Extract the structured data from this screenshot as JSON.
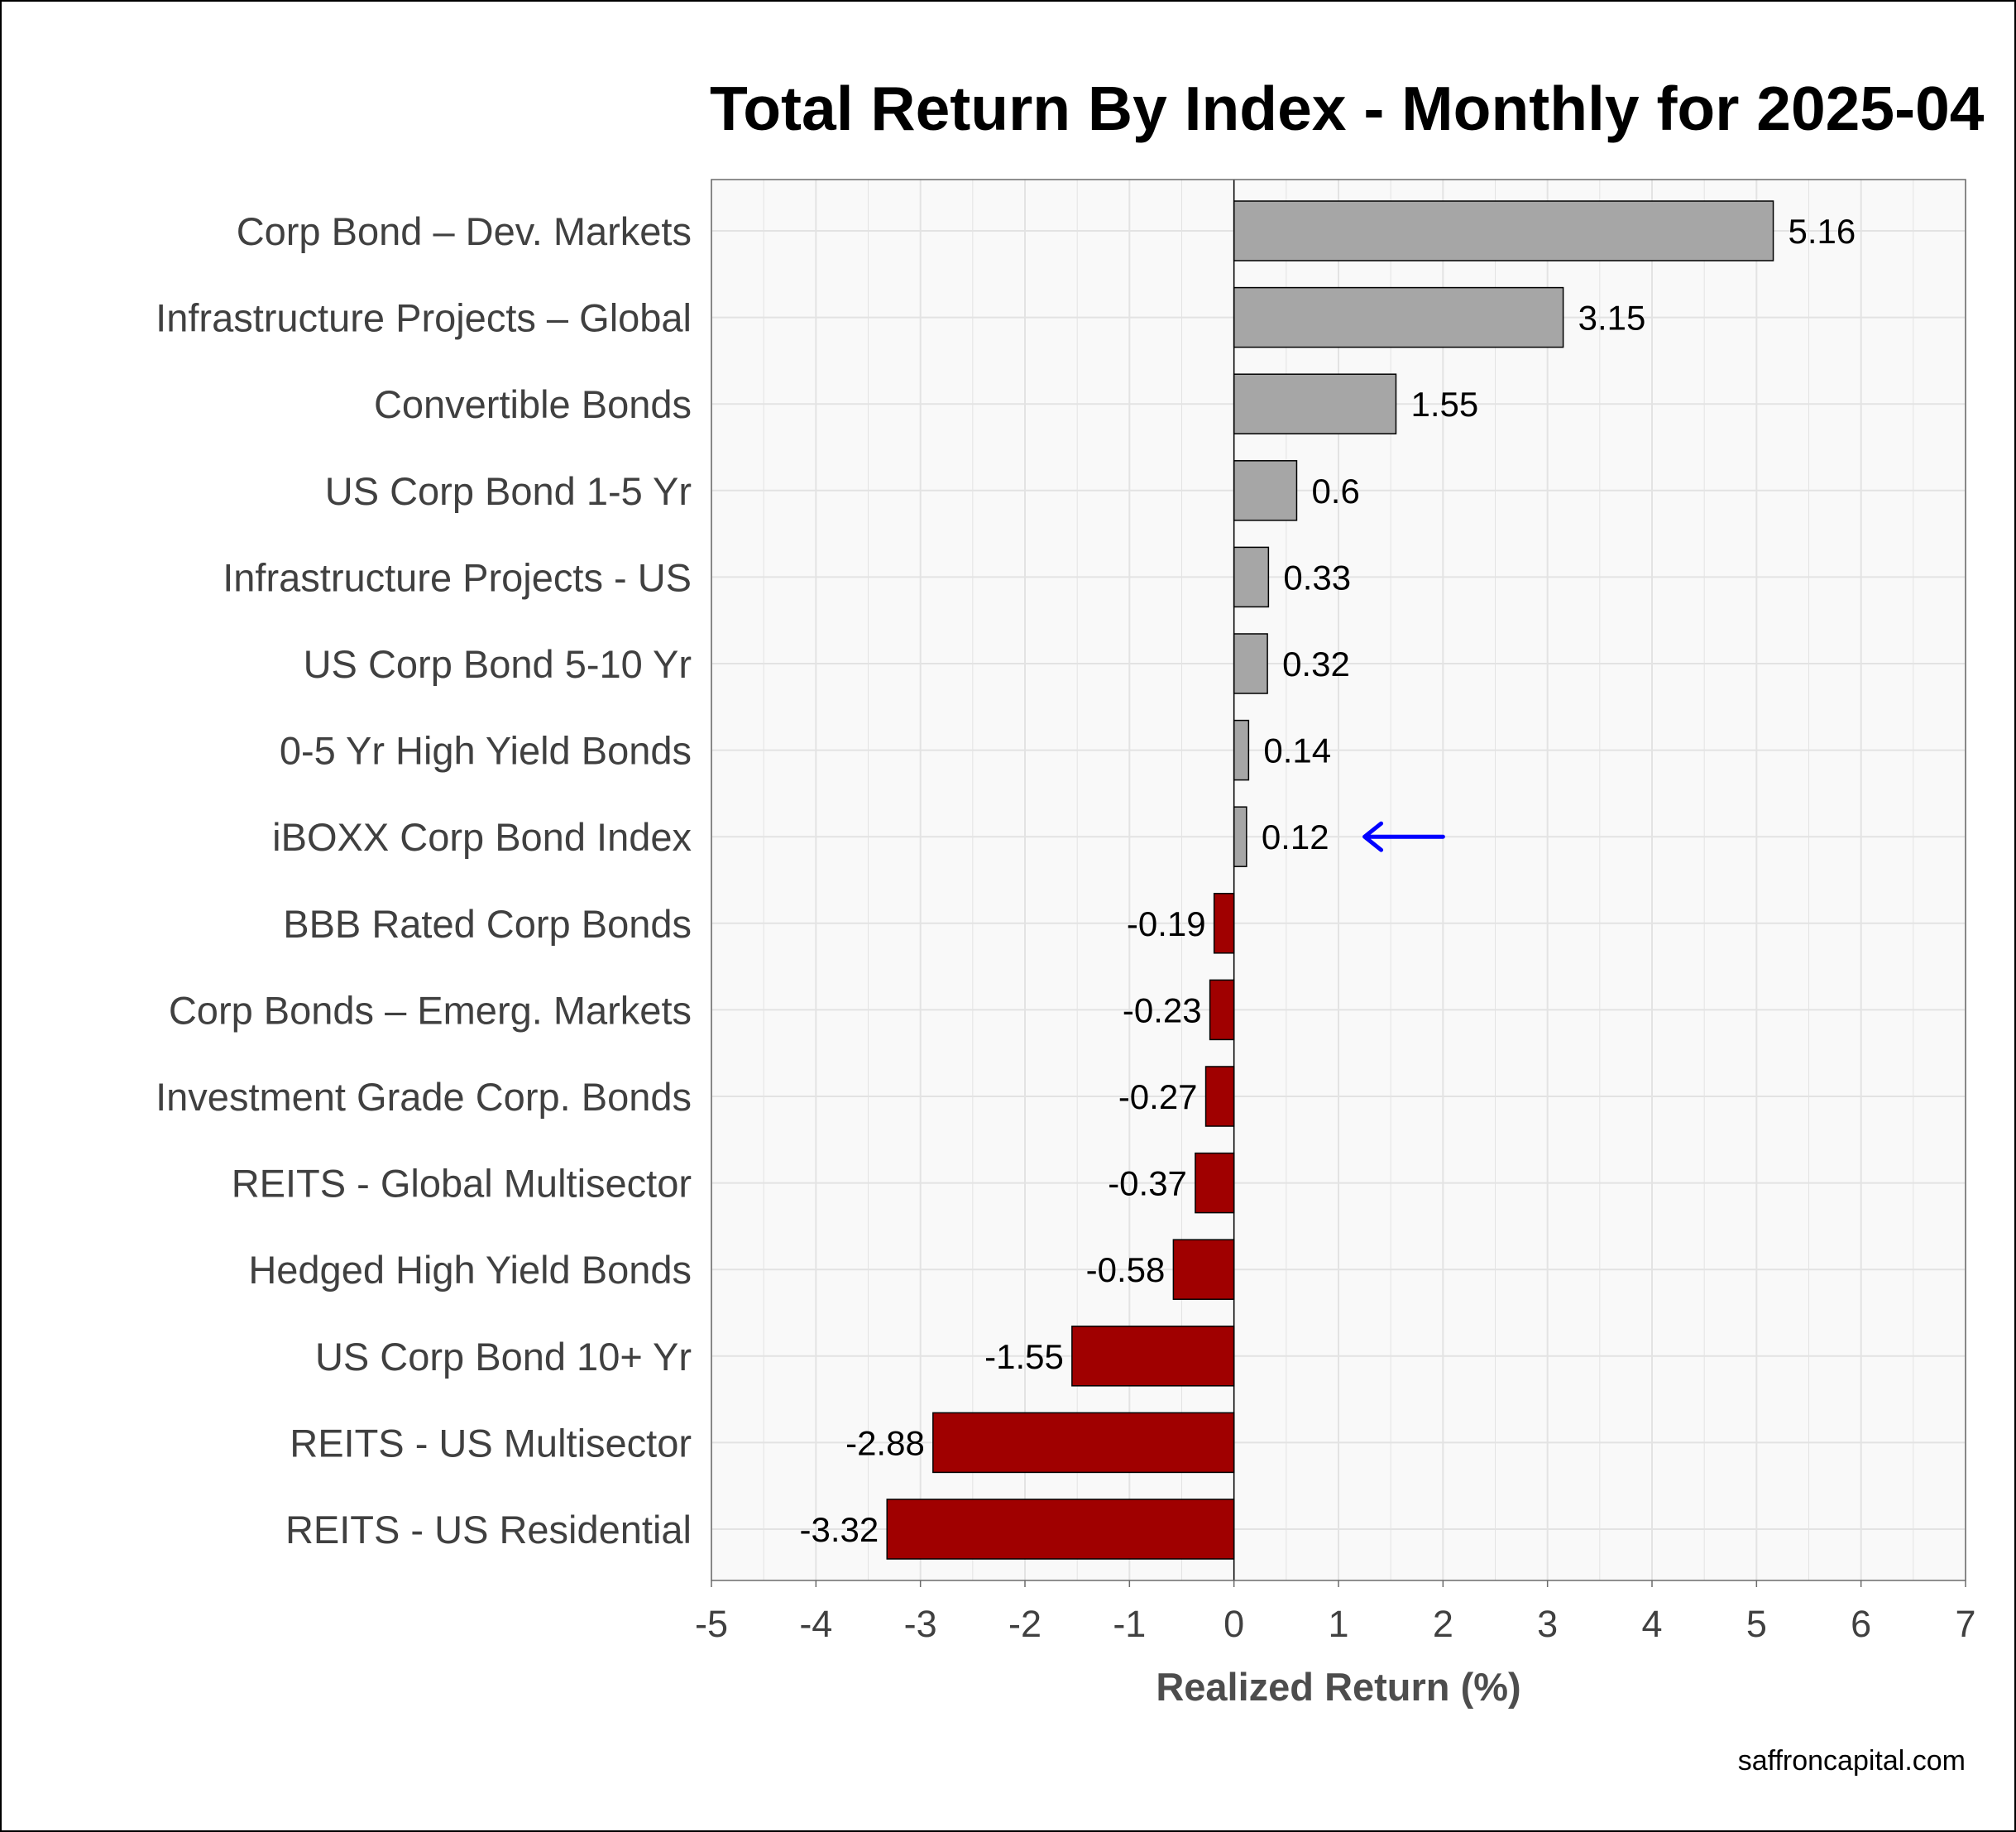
{
  "credit": "saffroncapital.com",
  "colors": {
    "positive_bar": "#a6a6a6",
    "negative_bar": "#a00000",
    "highlight_label": "#0000ff",
    "panel_background": "#f9f9f9",
    "grid": "#e3e3e3"
  },
  "chart_data": {
    "type": "bar",
    "orientation": "horizontal",
    "title": "Total Return By Index - Monthly for 2025-04",
    "xlabel": "Realized Return (%)",
    "ylabel": "",
    "xlim": [
      -5,
      7
    ],
    "xticks": [
      "-5",
      "-4",
      "-3",
      "-2",
      "-1",
      "0",
      "1",
      "2",
      "3",
      "4",
      "5",
      "6",
      "7"
    ],
    "grid": true,
    "highlight": {
      "category": "iBOXX Corp Bond Index",
      "marker": "left-arrow"
    },
    "categories": [
      "Corp Bond – Dev. Markets",
      "Infrastructure Projects – Global",
      "Convertible Bonds",
      "US Corp Bond 1-5 Yr",
      "Infrastructure Projects - US",
      "US Corp Bond 5-10 Yr",
      "0-5 Yr High Yield Bonds",
      "iBOXX Corp Bond Index",
      "BBB Rated Corp Bonds",
      "Corp Bonds – Emerg. Markets",
      "Investment Grade Corp. Bonds",
      "REITS - Global Multisector",
      "Hedged High Yield Bonds",
      "US Corp Bond 10+ Yr",
      "REITS - US Multisector ",
      "REITS - US Residential"
    ],
    "values": [
      5.16,
      3.15,
      1.55,
      0.6,
      0.33,
      0.32,
      0.14,
      0.12,
      -0.19,
      -0.23,
      -0.27,
      -0.37,
      -0.58,
      -1.55,
      -2.88,
      -3.32
    ],
    "value_labels": [
      "5.16",
      "3.15",
      "1.55",
      "0.6",
      "0.33",
      "0.32",
      "0.14",
      "0.12",
      "-0.19",
      "-0.23",
      "-0.27",
      "-0.37",
      "-0.58",
      "-1.55",
      "-2.88",
      "-3.32"
    ]
  }
}
